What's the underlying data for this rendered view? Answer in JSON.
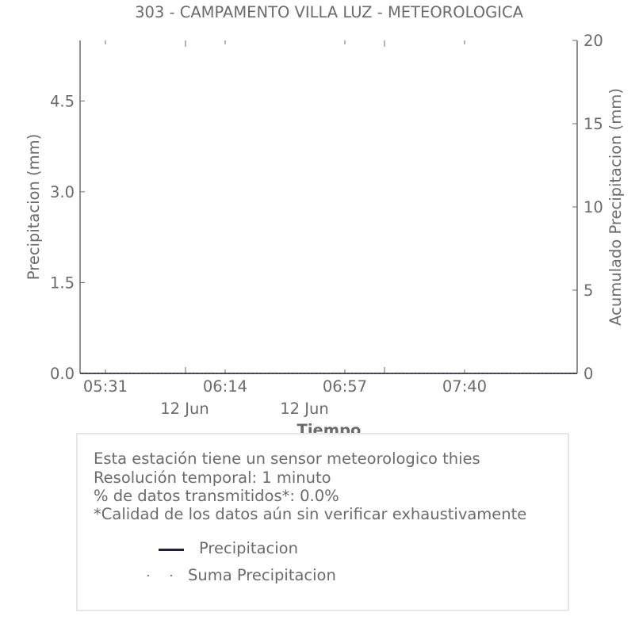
{
  "chart_data": {
    "type": "line",
    "title": "303 - CAMPAMENTO VILLA LUZ - METEOROLOGICA",
    "xlabel": "Tiempo",
    "ylabel": "Precipitacion (mm)",
    "y2label": "Acumulado Precipitacion (mm)",
    "ylim": [
      0,
      5.5
    ],
    "y2lim": [
      0,
      20
    ],
    "y_ticks": [
      "0.0",
      "1.5",
      "3.0",
      "4.5"
    ],
    "y2_ticks": [
      "0",
      "5",
      "10",
      "15",
      "20"
    ],
    "x_ticks": [
      {
        "label": "05:31",
        "date": ""
      },
      {
        "label": "06:14",
        "date": "12 Jun"
      },
      {
        "label": "06:57",
        "date": "12 Jun"
      },
      {
        "label": "07:40",
        "date": ""
      }
    ],
    "series": [
      {
        "name": "Precipitacion",
        "values": [
          0,
          0
        ],
        "color": "#1f1f3d",
        "style": "solid"
      },
      {
        "name": "Suma Precipitacion",
        "values": [
          0,
          0
        ],
        "color": "#555555",
        "style": "dotted"
      }
    ]
  },
  "info": {
    "lines": [
      "Esta estación tiene un sensor meteorologico thies",
      "Resolución temporal: 1 minuto",
      "% de datos transmitidos*: 0.0%",
      "*Calidad de los datos aún sin verificar exhaustivamente"
    ]
  },
  "legend": {
    "items": [
      "Precipitacion",
      "Suma Precipitacion"
    ]
  }
}
